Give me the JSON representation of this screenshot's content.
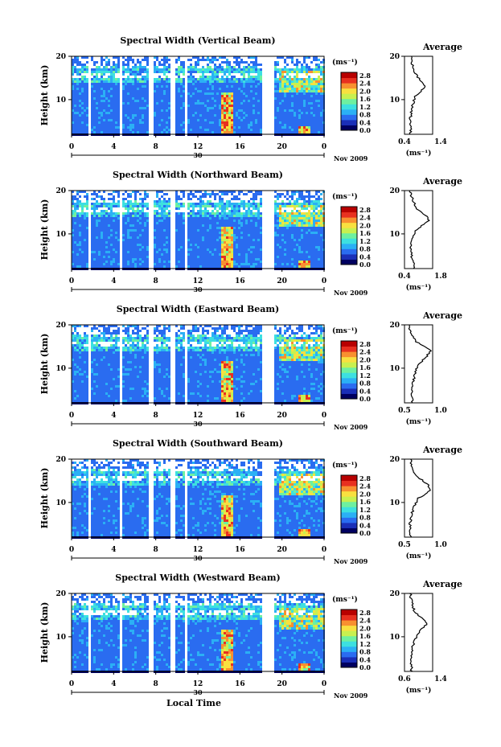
{
  "figure": {
    "xlabel": "Local Time",
    "colorbar_label": "(ms⁻¹)",
    "colorbar_ticks": [
      "2.8",
      "2.4",
      "2.0",
      "1.6",
      "1.2",
      "0.8",
      "0.4",
      "0.0"
    ],
    "date_label": "Nov 2009",
    "day_label": "30",
    "time_ticks": [
      "0",
      "4",
      "8",
      "12",
      "16",
      "20",
      "0"
    ],
    "height_ticks": [
      "20",
      "10"
    ],
    "profile_title": "Average",
    "profile_xlabel": "(ms⁻¹)",
    "colors": {
      "colormap": [
        "#000060",
        "#1a2fb8",
        "#2a6cf0",
        "#2bb0f5",
        "#3de0e0",
        "#6ef0a0",
        "#c8f050",
        "#f8e040",
        "#f89030",
        "#e83020",
        "#b80000"
      ]
    }
  },
  "chart_data": [
    {
      "type": "heatmap",
      "title": "Spectral Width (Vertical Beam)",
      "ylabel": "Height (km)",
      "x_range_hours": [
        0,
        24
      ],
      "y_range_km": [
        2,
        20
      ],
      "value_range": [
        0,
        3.0
      ],
      "profile": {
        "title": "Average",
        "xlim": [
          0.4,
          1.4
        ],
        "xticks": [
          "0.4",
          "1.4"
        ],
        "heights_km": [
          3,
          5,
          7,
          9,
          11,
          12,
          13,
          14,
          15,
          16,
          17,
          18,
          19
        ],
        "values": [
          0.62,
          0.6,
          0.64,
          0.7,
          0.8,
          1.0,
          1.15,
          1.05,
          0.9,
          0.78,
          0.72,
          0.68,
          0.65
        ]
      }
    },
    {
      "type": "heatmap",
      "title": "Spectral Width (Northward Beam)",
      "ylabel": "Height (km)",
      "x_range_hours": [
        0,
        24
      ],
      "y_range_km": [
        2,
        20
      ],
      "value_range": [
        0,
        3.0
      ],
      "profile": {
        "title": "Average",
        "xlim": [
          0.4,
          1.8
        ],
        "xticks": [
          "0.4",
          "1.8"
        ],
        "heights_km": [
          3,
          5,
          7,
          9,
          11,
          12,
          13,
          14,
          15,
          16,
          17,
          18,
          19
        ],
        "values": [
          0.85,
          0.75,
          0.7,
          0.8,
          1.0,
          1.3,
          1.6,
          1.5,
          1.2,
          1.0,
          0.9,
          0.8,
          0.7
        ]
      }
    },
    {
      "type": "heatmap",
      "title": "Spectral Width (Eastward Beam)",
      "ylabel": "Height (km)",
      "x_range_hours": [
        0,
        24
      ],
      "y_range_km": [
        2,
        20
      ],
      "value_range": [
        0,
        3.0
      ],
      "profile": {
        "title": "Average",
        "xlim": [
          0.4,
          1.2
        ],
        "xticks": [
          "0.5",
          "1.0"
        ],
        "heights_km": [
          3,
          5,
          7,
          9,
          11,
          12,
          13,
          14,
          15,
          16,
          17,
          18,
          19
        ],
        "values": [
          0.62,
          0.6,
          0.65,
          0.7,
          0.8,
          0.95,
          1.05,
          1.15,
          1.0,
          0.75,
          0.65,
          0.6,
          0.55
        ]
      }
    },
    {
      "type": "heatmap",
      "title": "Spectral Width (Southward Beam)",
      "ylabel": "Height (km)",
      "x_range_hours": [
        0,
        24
      ],
      "y_range_km": [
        2,
        20
      ],
      "value_range": [
        0,
        3.0
      ],
      "profile": {
        "title": "Average",
        "xlim": [
          0.4,
          1.3
        ],
        "xticks": [
          "0.5",
          "1.0"
        ],
        "heights_km": [
          3,
          5,
          7,
          9,
          11,
          12,
          13,
          14,
          15,
          16,
          17,
          18,
          19
        ],
        "values": [
          0.6,
          0.58,
          0.62,
          0.7,
          0.85,
          1.1,
          1.25,
          1.15,
          1.0,
          0.8,
          0.7,
          0.65,
          0.6
        ]
      }
    },
    {
      "type": "heatmap",
      "title": "Spectral Width (Westward Beam)",
      "ylabel": "Height (km)",
      "x_range_hours": [
        0,
        24
      ],
      "y_range_km": [
        2,
        20
      ],
      "value_range": [
        0,
        3.0
      ],
      "profile": {
        "title": "Average",
        "xlim": [
          0.4,
          1.4
        ],
        "xticks": [
          "0.6",
          "1.4"
        ],
        "heights_km": [
          3,
          5,
          7,
          9,
          11,
          12,
          13,
          14,
          15,
          16,
          17,
          18,
          19
        ],
        "values": [
          0.65,
          0.62,
          0.66,
          0.75,
          0.9,
          1.05,
          1.2,
          1.1,
          0.9,
          0.75,
          0.7,
          0.66,
          0.62
        ]
      }
    }
  ]
}
